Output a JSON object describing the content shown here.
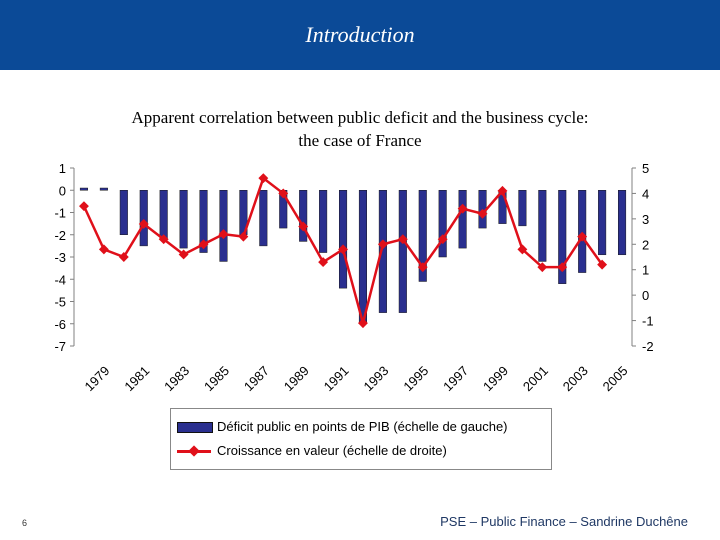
{
  "header": {
    "title": "Introduction"
  },
  "chart_data": {
    "type": "bar",
    "title_lines": [
      "Apparent correlation between public deficit and the business cycle:",
      "the case of France"
    ],
    "categories": [
      "1979",
      "1980",
      "1981",
      "1982",
      "1983",
      "1984",
      "1985",
      "1986",
      "1987",
      "1988",
      "1989",
      "1990",
      "1991",
      "1992",
      "1993",
      "1994",
      "1995",
      "1996",
      "1997",
      "1998",
      "1999",
      "2000",
      "2001",
      "2002",
      "2003",
      "2004",
      "2005",
      "2006"
    ],
    "x_tick_labels": [
      "1979",
      "1981",
      "1983",
      "1985",
      "1987",
      "1989",
      "1991",
      "1993",
      "1995",
      "1997",
      "1999",
      "2001",
      "2003",
      "2005"
    ],
    "series": [
      {
        "name": "Déficit public en points de PIB (échelle de gauche)",
        "type": "bar",
        "axis": "left",
        "color": "#2a2f8f",
        "values": [
          0.1,
          0.1,
          -2.0,
          -2.5,
          -2.2,
          -2.6,
          -2.8,
          -3.2,
          -2.0,
          -2.5,
          -1.7,
          -2.3,
          -2.8,
          -4.4,
          -6.0,
          -5.5,
          -5.5,
          -4.1,
          -3.0,
          -2.6,
          -1.7,
          -1.5,
          -1.6,
          -3.2,
          -4.2,
          -3.7,
          -2.9,
          -2.9
        ]
      },
      {
        "name": "Croissance en valeur (échelle de droite)",
        "type": "line",
        "axis": "right",
        "color": "#e0101a",
        "values": [
          3.5,
          1.8,
          1.5,
          2.8,
          2.2,
          1.6,
          2.0,
          2.4,
          2.3,
          4.6,
          4.0,
          2.7,
          1.3,
          1.8,
          -1.1,
          2.0,
          2.2,
          1.1,
          2.2,
          3.4,
          3.2,
          4.1,
          1.8,
          1.1,
          1.1,
          2.3,
          1.2,
          null
        ]
      }
    ],
    "y_left": {
      "ylim": [
        -7,
        1
      ],
      "ticks": [
        "1",
        "0",
        "-1",
        "-2",
        "-3",
        "-4",
        "-5",
        "-6",
        "-7"
      ]
    },
    "y_right": {
      "ylim": [
        -2,
        5
      ],
      "ticks": [
        "5",
        "4",
        "3",
        "2",
        "1",
        "0",
        "-1",
        "-2"
      ]
    },
    "legend_position": "bottom",
    "grid": false
  },
  "footer": {
    "page_number": "6",
    "text": "PSE – Public Finance – Sandrine Duchêne"
  }
}
